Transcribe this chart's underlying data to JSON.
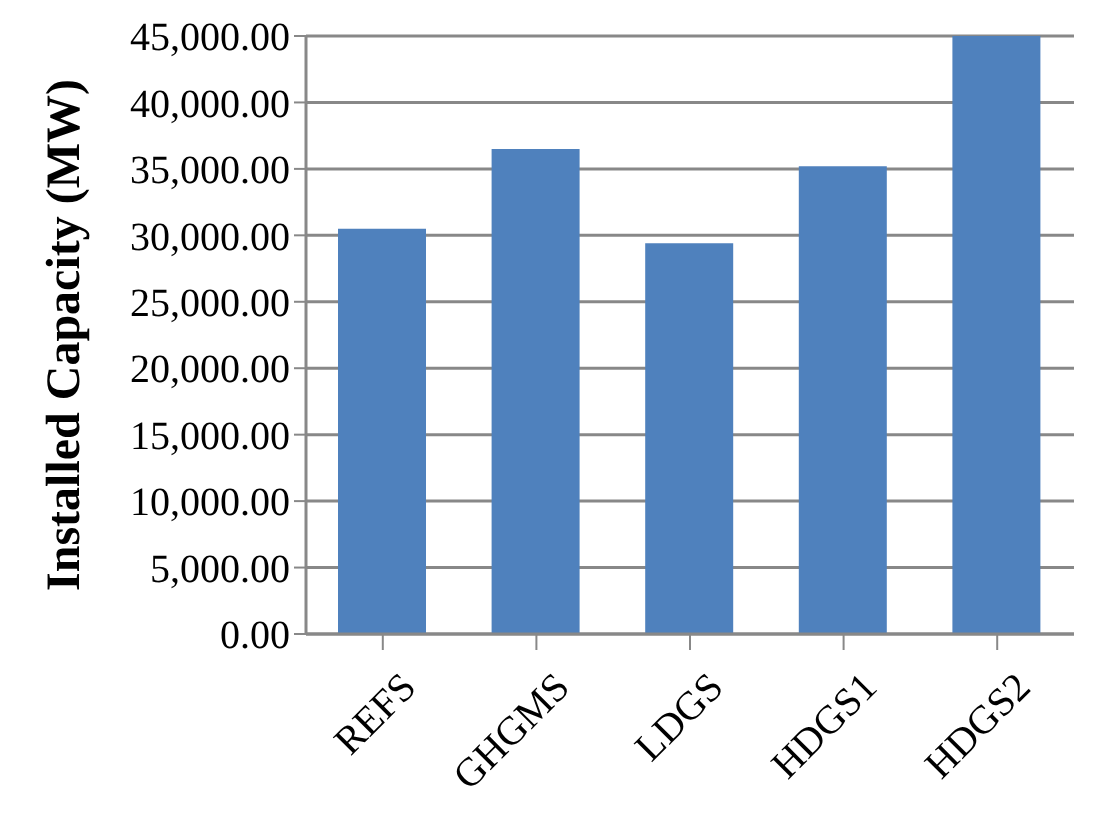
{
  "chart_data": {
    "type": "bar",
    "ylabel": "Installed Capacity (MW)",
    "categories": [
      "REFS",
      "GHGMS",
      "LDGS",
      "HDGS1",
      "HDGS2"
    ],
    "values": [
      30500,
      36500,
      29400,
      35200,
      45000
    ],
    "color": "#4f81bd",
    "ylim": [
      0,
      45000
    ],
    "yticks": [
      {
        "value": 0,
        "label": "0.00"
      },
      {
        "value": 5000,
        "label": "5,000.00"
      },
      {
        "value": 10000,
        "label": "10,000.00"
      },
      {
        "value": 15000,
        "label": "15,000.00"
      },
      {
        "value": 20000,
        "label": "20,000.00"
      },
      {
        "value": 25000,
        "label": "25,000.00"
      },
      {
        "value": 30000,
        "label": "30,000.00"
      },
      {
        "value": 35000,
        "label": "35,000.00"
      },
      {
        "value": 40000,
        "label": "40,000.00"
      },
      {
        "value": 45000,
        "label": "45,000.00"
      }
    ],
    "grid": "y"
  }
}
